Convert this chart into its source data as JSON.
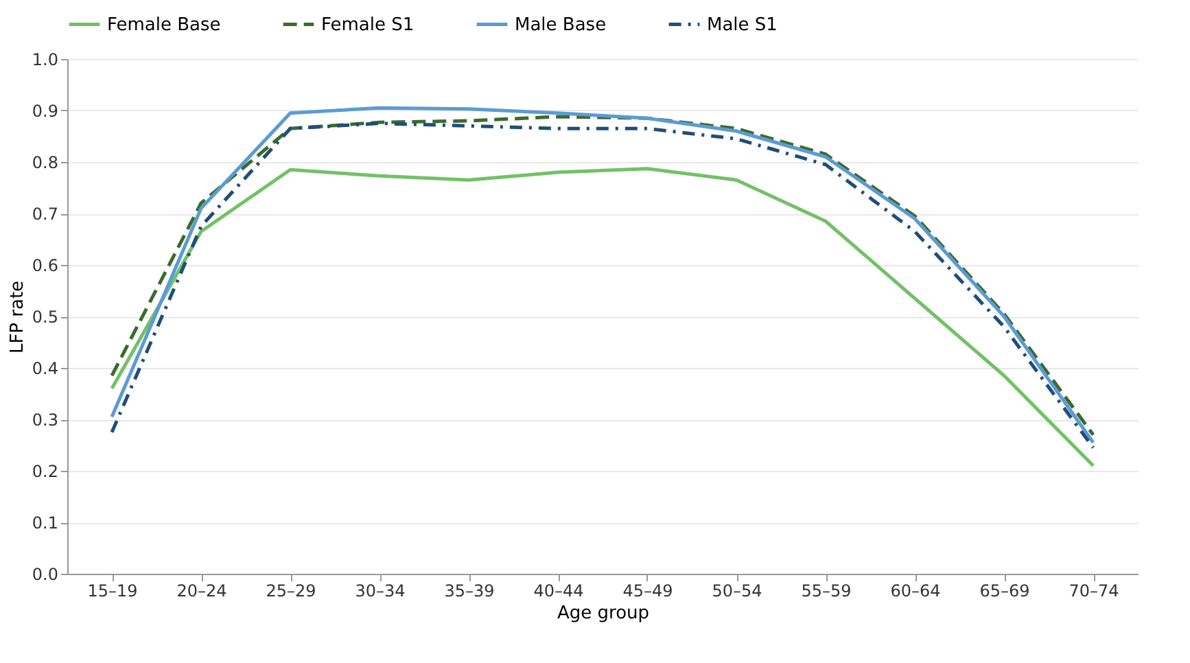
{
  "chart_data": {
    "type": "line",
    "xlabel": "Age group",
    "ylabel": "LFP rate",
    "categories": [
      "15–19",
      "20–24",
      "25–29",
      "30–34",
      "35–39",
      "40–44",
      "45–49",
      "50–54",
      "55–59",
      "60–64",
      "65–69",
      "70–74"
    ],
    "series": [
      {
        "name": "Female Base",
        "color": "#72c166",
        "line_style": "solid",
        "values": [
          0.36,
          0.665,
          0.785,
          0.773,
          0.765,
          0.78,
          0.787,
          0.765,
          0.685,
          0.535,
          0.385,
          0.21
        ]
      },
      {
        "name": "Female S1",
        "color": "#3a6b2c",
        "line_style": "dashed",
        "values": [
          0.385,
          0.72,
          0.865,
          0.877,
          0.88,
          0.888,
          0.885,
          0.865,
          0.815,
          0.695,
          0.505,
          0.27
        ]
      },
      {
        "name": "Male Base",
        "color": "#5b9bd5",
        "line_style": "solid",
        "values": [
          0.305,
          0.71,
          0.895,
          0.905,
          0.903,
          0.895,
          0.885,
          0.86,
          0.81,
          0.69,
          0.5,
          0.255
        ]
      },
      {
        "name": "Male S1",
        "color": "#1f4e79",
        "line_style": "dashdot",
        "values": [
          0.275,
          0.675,
          0.865,
          0.875,
          0.87,
          0.865,
          0.865,
          0.845,
          0.795,
          0.665,
          0.48,
          0.245
        ]
      }
    ],
    "ylim": [
      0,
      1
    ],
    "yticks": [
      {
        "value": 0,
        "label": "0.0"
      },
      0.1,
      0.2,
      0.3,
      0.4,
      0.5,
      0.6,
      0.7,
      0.8,
      0.9,
      {
        "value": 1,
        "label": "1.0"
      }
    ],
    "grid": "y",
    "legend": "top",
    "marker": "none"
  }
}
